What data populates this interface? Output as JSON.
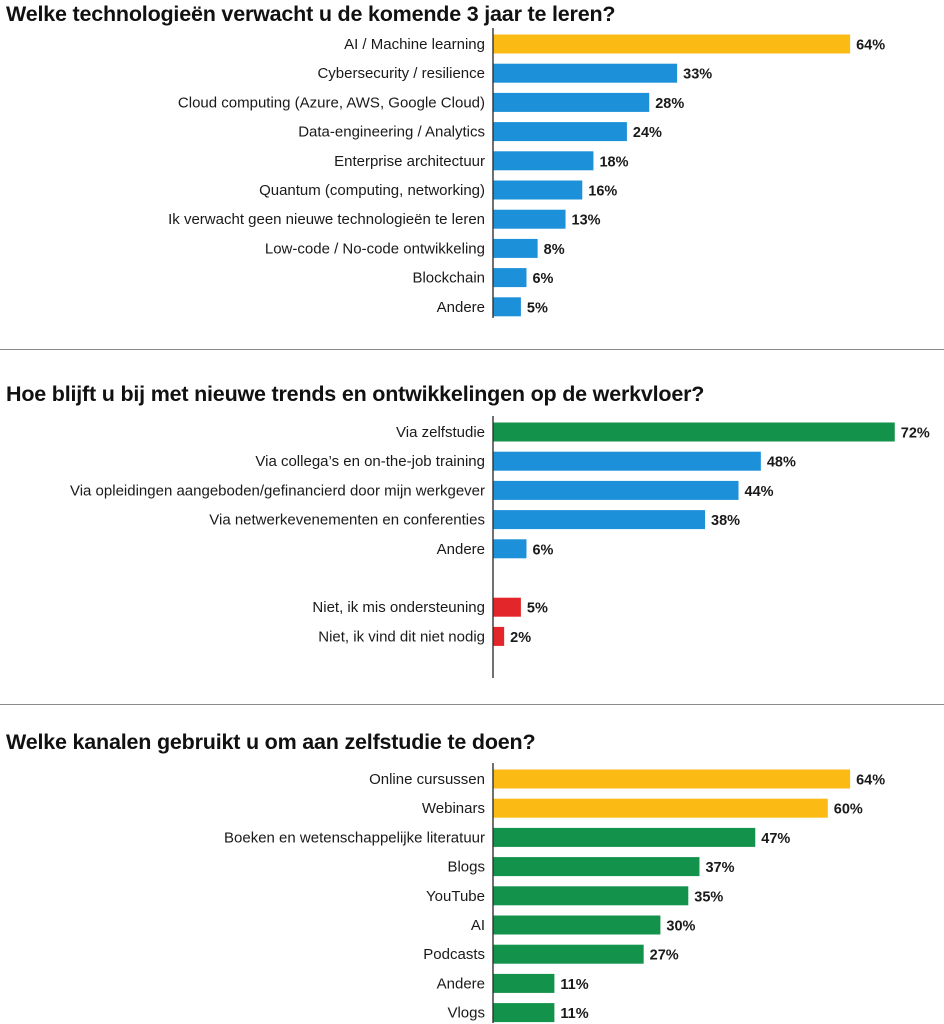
{
  "colors": {
    "yellow": "#FBBA14",
    "blue": "#1C90D8",
    "green": "#12924A",
    "red": "#E3262A",
    "axis": "#333333"
  },
  "chart_data": [
    {
      "type": "bar",
      "orientation": "horizontal",
      "title": "Welke technologieën verwacht u de komende 3 jaar te leren?",
      "unit": "%",
      "xlim": [
        0,
        72
      ],
      "grid": false,
      "categories": [
        "AI / Machine learning",
        "Cybersecurity / resilience",
        "Cloud computing (Azure, AWS, Google Cloud)",
        "Data-engineering / Analytics",
        "Enterprise architectuur",
        "Quantum (computing, networking)",
        "Ik verwacht geen nieuwe technologieën te leren",
        "Low-code / No-code ontwikkeling",
        "Blockchain",
        "Andere"
      ],
      "values": [
        64,
        33,
        28,
        24,
        18,
        16,
        13,
        8,
        6,
        5
      ],
      "value_labels": [
        "64%",
        "33%",
        "28%",
        "24%",
        "18%",
        "16%",
        "13%",
        "8%",
        "6%",
        "5%"
      ],
      "bar_colors": [
        "yellow",
        "blue",
        "blue",
        "blue",
        "blue",
        "blue",
        "blue",
        "blue",
        "blue",
        "blue"
      ]
    },
    {
      "type": "bar",
      "orientation": "horizontal",
      "title": "Hoe blijft u bij met nieuwe trends en ontwikkelingen op de werkvloer?",
      "unit": "%",
      "xlim": [
        0,
        72
      ],
      "grid": false,
      "categories": [
        "Via zelfstudie",
        "Via collega’s en on-the-job training",
        "Via opleidingen aangeboden/gefinancierd door mijn werkgever",
        "Via netwerkevenementen en conferenties",
        "Andere",
        "",
        "Niet, ik mis ondersteuning",
        "Niet, ik vind dit niet nodig"
      ],
      "values": [
        72,
        48,
        44,
        38,
        6,
        null,
        5,
        2
      ],
      "value_labels": [
        "72%",
        "48%",
        "44%",
        "38%",
        "6%",
        "",
        "5%",
        "2%"
      ],
      "bar_colors": [
        "green",
        "blue",
        "blue",
        "blue",
        "blue",
        "",
        "red",
        "red"
      ]
    },
    {
      "type": "bar",
      "orientation": "horizontal",
      "title": "Welke kanalen gebruikt u om aan zelfstudie te doen?",
      "unit": "%",
      "xlim": [
        0,
        72
      ],
      "grid": false,
      "categories": [
        "Online cursussen",
        "Webinars",
        "Boeken en wetenschappelijke literatuur",
        "Blogs",
        "YouTube",
        "AI",
        "Podcasts",
        "Andere",
        "Vlogs"
      ],
      "values": [
        64,
        60,
        47,
        37,
        35,
        30,
        27,
        11,
        11
      ],
      "value_labels": [
        "64%",
        "60%",
        "47%",
        "37%",
        "35%",
        "30%",
        "27%",
        "11%",
        "11%"
      ],
      "bar_colors": [
        "yellow",
        "yellow",
        "green",
        "green",
        "green",
        "green",
        "green",
        "green",
        "green"
      ]
    }
  ]
}
